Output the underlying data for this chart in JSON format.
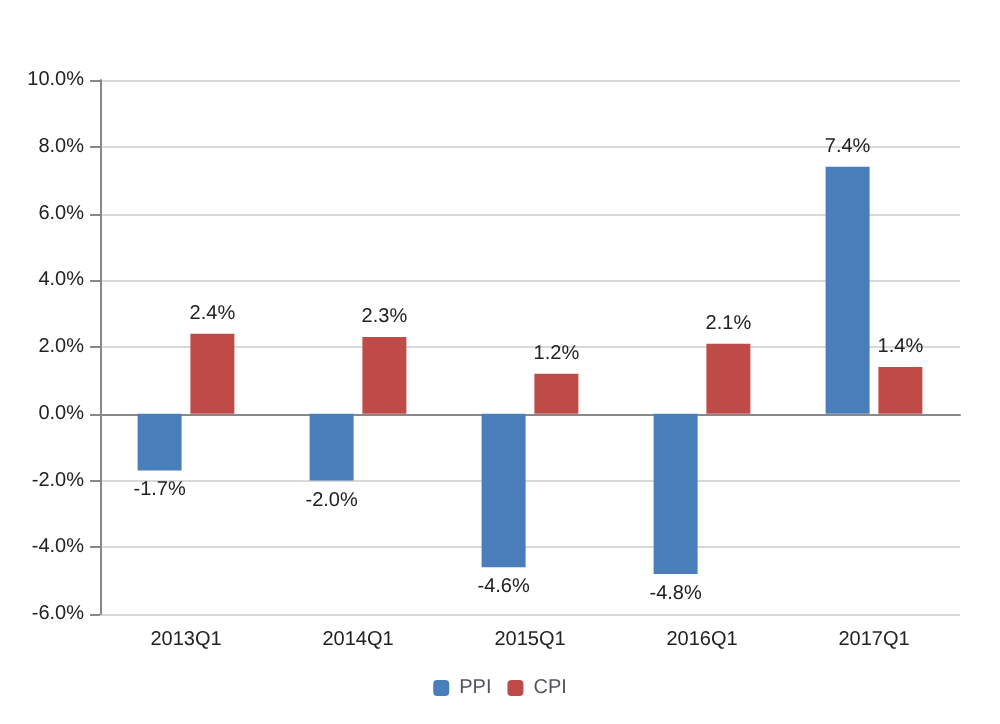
{
  "chart_data": {
    "type": "bar",
    "categories": [
      "2013Q1",
      "2014Q1",
      "2015Q1",
      "2016Q1",
      "2017Q1"
    ],
    "series": [
      {
        "name": "PPI",
        "color": "#4a7ebb",
        "values": [
          -1.7,
          -2.0,
          -4.6,
          -4.8,
          7.4
        ],
        "value_labels": [
          "-1.7%",
          "-2.0%",
          "-4.6%",
          "-4.8%",
          "7.4%"
        ]
      },
      {
        "name": "CPI",
        "color": "#be4b48",
        "values": [
          2.4,
          2.3,
          1.2,
          2.1,
          1.4
        ],
        "value_labels": [
          "2.4%",
          "2.3%",
          "1.2%",
          "2.1%",
          "1.4%"
        ]
      }
    ],
    "ylim": [
      -6,
      10
    ],
    "yticks": [
      {
        "value": -6,
        "label": "-6.0%"
      },
      {
        "value": -4,
        "label": "-4.0%"
      },
      {
        "value": -2,
        "label": "-2.0%"
      },
      {
        "value": 0,
        "label": "0.0%"
      },
      {
        "value": 2,
        "label": "2.0%"
      },
      {
        "value": 4,
        "label": "4.0%"
      },
      {
        "value": 6,
        "label": "6.0%"
      },
      {
        "value": 8,
        "label": "8.0%"
      },
      {
        "value": 10,
        "label": "10.0%"
      }
    ],
    "grid": "y",
    "legend": "bottom"
  }
}
